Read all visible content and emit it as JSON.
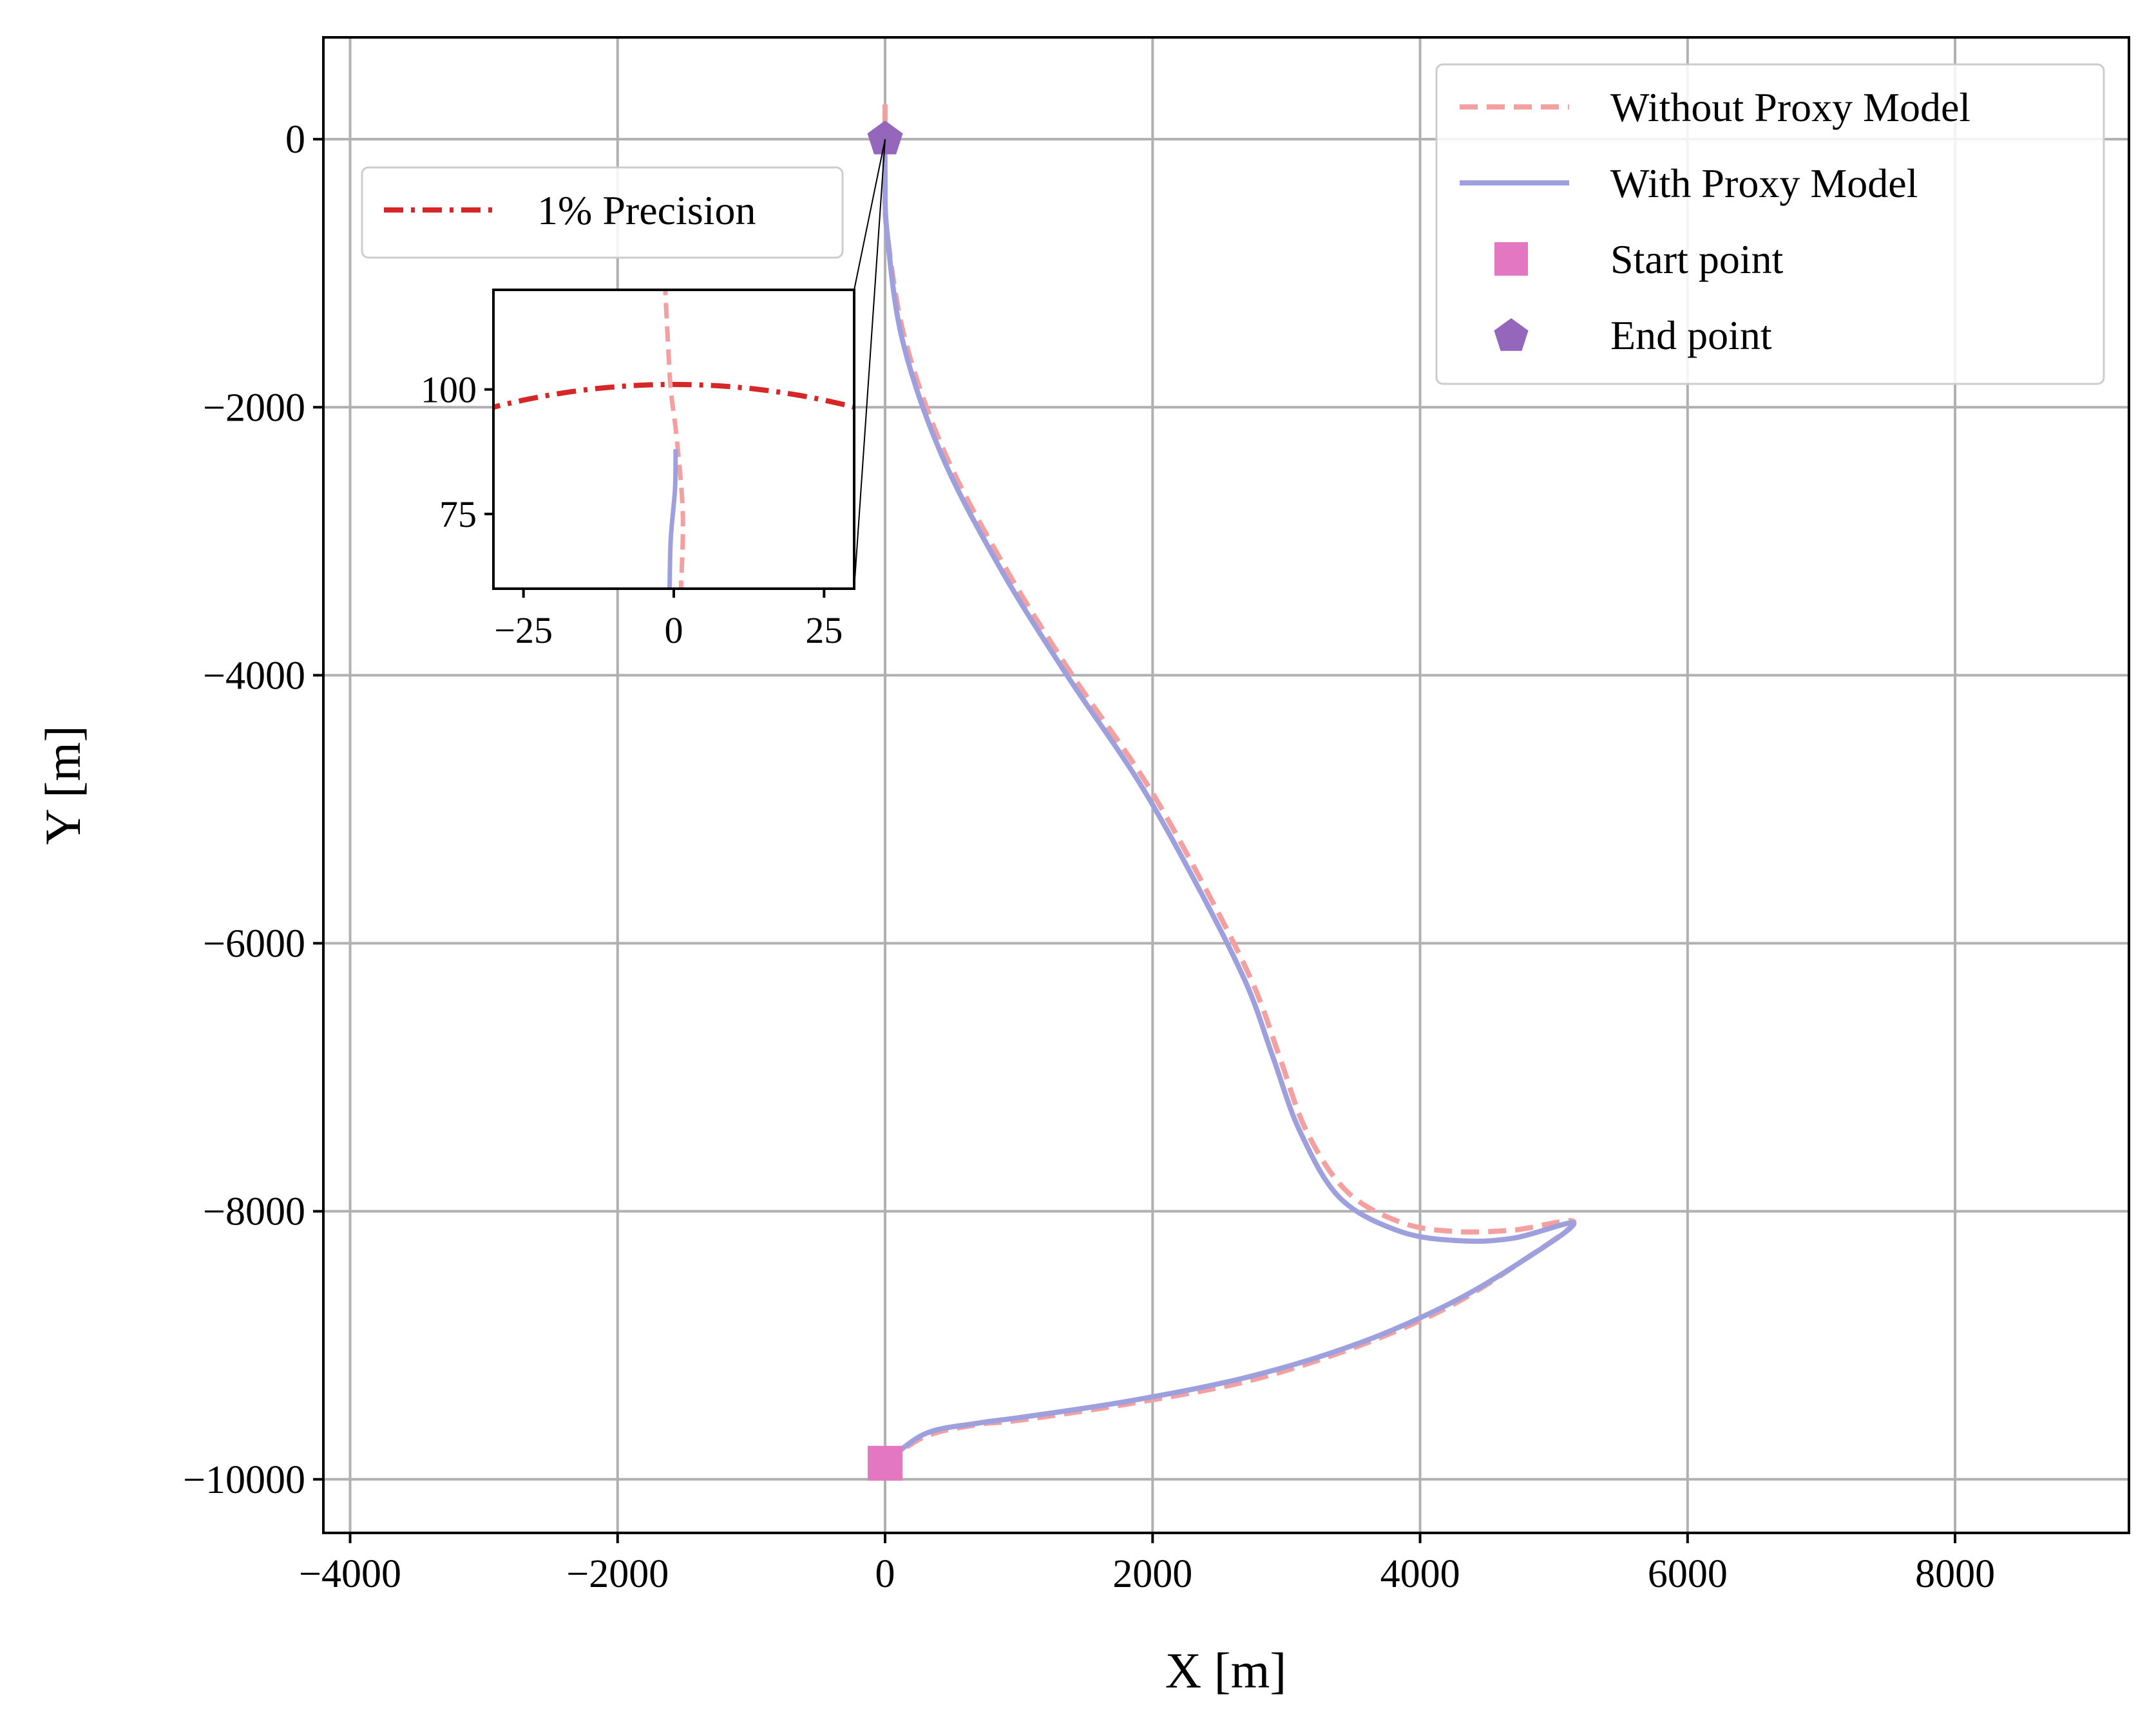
{
  "chart_data": {
    "type": "line",
    "title": "",
    "xlabel": "X [m]",
    "ylabel": "Y [m]",
    "xlim": [
      -4200,
      9300
    ],
    "ylim": [
      -10400,
      760
    ],
    "x_ticks": [
      -4000,
      -2000,
      0,
      2000,
      4000,
      6000,
      8000
    ],
    "y_ticks": [
      0,
      -2000,
      -4000,
      -6000,
      -8000,
      -10000
    ],
    "x_tick_labels": [
      "−4000",
      "−2000",
      "0",
      "2000",
      "4000",
      "6000",
      "8000"
    ],
    "y_tick_labels": [
      "0",
      "−2000",
      "−4000",
      "−6000",
      "−8000",
      "−10000"
    ],
    "grid": true,
    "colors": {
      "without": "#f4a0a0",
      "with": "#9ea0dd",
      "start": "#e377c2",
      "end": "#9467bd",
      "precision": "#d62728",
      "grid": "#b0b0b0"
    },
    "series": [
      {
        "name": "Without Proxy Model",
        "style": "dashed",
        "points": [
          [
            0,
            260
          ],
          [
            0,
            -300
          ],
          [
            15,
            -700
          ],
          [
            150,
            -1500
          ],
          [
            450,
            -2350
          ],
          [
            900,
            -3200
          ],
          [
            1400,
            -4000
          ],
          [
            1950,
            -4800
          ],
          [
            2400,
            -5600
          ],
          [
            2750,
            -6300
          ],
          [
            2950,
            -6850
          ],
          [
            3150,
            -7400
          ],
          [
            3450,
            -7850
          ],
          [
            3850,
            -8080
          ],
          [
            4250,
            -8150
          ],
          [
            4700,
            -8140
          ],
          [
            5150,
            -8080
          ],
          [
            4750,
            -8380
          ],
          [
            4200,
            -8720
          ],
          [
            3500,
            -9020
          ],
          [
            2700,
            -9270
          ],
          [
            1800,
            -9440
          ],
          [
            1000,
            -9560
          ],
          [
            700,
            -9590
          ],
          [
            300,
            -9680
          ],
          [
            0,
            -9880
          ]
        ]
      },
      {
        "name": "With Proxy Model",
        "style": "solid",
        "points": [
          [
            0,
            100
          ],
          [
            0,
            -300
          ],
          [
            15,
            -700
          ],
          [
            130,
            -1500
          ],
          [
            420,
            -2350
          ],
          [
            860,
            -3200
          ],
          [
            1360,
            -4000
          ],
          [
            1900,
            -4800
          ],
          [
            2350,
            -5600
          ],
          [
            2700,
            -6300
          ],
          [
            2900,
            -6850
          ],
          [
            3100,
            -7400
          ],
          [
            3400,
            -7900
          ],
          [
            3850,
            -8150
          ],
          [
            4300,
            -8220
          ],
          [
            4700,
            -8200
          ],
          [
            5150,
            -8090
          ],
          [
            4750,
            -8380
          ],
          [
            4200,
            -8700
          ],
          [
            3500,
            -9000
          ],
          [
            2700,
            -9240
          ],
          [
            1800,
            -9420
          ],
          [
            1000,
            -9540
          ],
          [
            700,
            -9580
          ],
          [
            300,
            -9660
          ],
          [
            0,
            -9880
          ]
        ]
      }
    ],
    "markers": [
      {
        "name": "Start point",
        "shape": "square",
        "x": 0,
        "y": -9880
      },
      {
        "name": "End point",
        "shape": "pentagon",
        "x": 0,
        "y": 0
      }
    ],
    "legend": {
      "position": "top-right",
      "entries": [
        "Without Proxy Model",
        "With Proxy Model",
        "Start point",
        "End point"
      ]
    },
    "precision_legend": {
      "position": "top-left",
      "entries": [
        "1% Precision"
      ]
    },
    "inset": {
      "xlim": [
        -30,
        30
      ],
      "ylim": [
        60,
        120
      ],
      "x_ticks": [
        -25,
        0,
        25
      ],
      "x_tick_labels": [
        "−25",
        "0",
        "25"
      ],
      "y_ticks": [
        75,
        100
      ],
      "y_tick_labels": [
        "75",
        "100"
      ],
      "precision_circle": {
        "name": "1% Precision",
        "center_x": 0,
        "center_y": 0,
        "radius": 101
      },
      "without_points": [
        [
          -1.5,
          122
        ],
        [
          -1.0,
          110
        ],
        [
          -0.5,
          100
        ],
        [
          0.5,
          90
        ],
        [
          1.5,
          75
        ],
        [
          1.2,
          60
        ]
      ],
      "with_points": [
        [
          0.3,
          88
        ],
        [
          0.2,
          80
        ],
        [
          -0.5,
          70
        ],
        [
          -0.7,
          60
        ]
      ]
    }
  }
}
